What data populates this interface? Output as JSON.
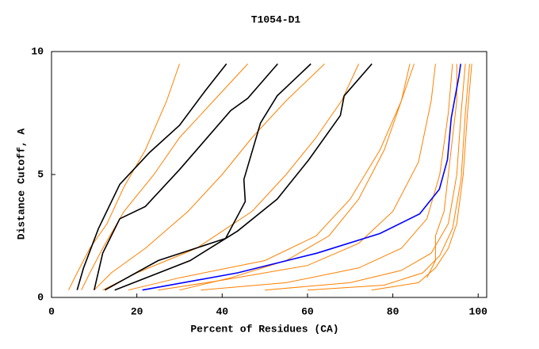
{
  "chart_data": {
    "type": "line",
    "title": "T1054-D1",
    "xlabel": "Percent of Residues (CA)",
    "ylabel": "Distance Cutoff, A",
    "xlim": [
      0,
      102
    ],
    "ylim": [
      0,
      10
    ],
    "xticks": [
      0,
      20,
      40,
      60,
      80,
      100
    ],
    "yticks": [
      0,
      5,
      10
    ],
    "series": [
      {
        "color": "#ff8000",
        "x": [
          4,
          6,
          9,
          13,
          17,
          22,
          27,
          30
        ],
        "values": [
          0.3,
          1,
          2,
          3,
          4.5,
          6,
          8,
          9.5
        ]
      },
      {
        "color": "#ff8000",
        "x": [
          7,
          9,
          12,
          17,
          24,
          30,
          38,
          46
        ],
        "values": [
          0.3,
          1,
          2,
          3.5,
          5,
          6.5,
          8,
          9.5
        ]
      },
      {
        "color": "#ff8000",
        "x": [
          10,
          14,
          22,
          32,
          40,
          47,
          55,
          64
        ],
        "values": [
          0.3,
          1,
          2,
          3.5,
          5,
          6.5,
          8,
          9.5
        ]
      },
      {
        "color": "#ff8000",
        "x": [
          12,
          20,
          34,
          47,
          55,
          62,
          68,
          72
        ],
        "values": [
          0.3,
          1,
          2,
          3.5,
          5,
          6.5,
          8,
          9.5
        ]
      },
      {
        "color": "#ff8000",
        "x": [
          18,
          30,
          50,
          62,
          70,
          77,
          82,
          84
        ],
        "values": [
          0.3,
          0.8,
          1.5,
          2.5,
          4,
          6,
          8,
          9.5
        ]
      },
      {
        "color": "#ff8000",
        "x": [
          25,
          40,
          60,
          72,
          80,
          86,
          89,
          90
        ],
        "values": [
          0.3,
          0.7,
          1.3,
          2.2,
          3.5,
          5.5,
          8,
          9.5
        ]
      },
      {
        "color": "#ff8000",
        "x": [
          35,
          55,
          72,
          82,
          88,
          91,
          93,
          94
        ],
        "values": [
          0.3,
          0.6,
          1.2,
          2,
          3.2,
          5,
          7.5,
          9.5
        ]
      },
      {
        "color": "#ff8000",
        "x": [
          50,
          70,
          82,
          89,
          93,
          95,
          96,
          97
        ],
        "values": [
          0.3,
          0.6,
          1.1,
          1.8,
          3,
          5,
          7.5,
          9.5
        ]
      },
      {
        "color": "#ff8000",
        "x": [
          60,
          78,
          87,
          91,
          94,
          96,
          97,
          98
        ],
        "values": [
          0.3,
          0.5,
          1,
          1.7,
          2.8,
          4.8,
          7.5,
          9.5
        ]
      },
      {
        "color": "#ff8000",
        "x": [
          75,
          86,
          90,
          93,
          95,
          96.5,
          97.5,
          98.5
        ],
        "values": [
          0.3,
          0.6,
          1.2,
          2,
          3,
          5,
          7.5,
          9.5
        ]
      },
      {
        "color": "#ff8000",
        "x": [
          88,
          90,
          90,
          92,
          93,
          94,
          95,
          95
        ],
        "values": [
          0.8,
          1.5,
          2.5,
          3.5,
          5,
          6.5,
          8,
          9.5
        ]
      },
      {
        "color": "#ff8000",
        "x": [
          30,
          42,
          55,
          65,
          72,
          78,
          82,
          85
        ],
        "values": [
          0.3,
          0.8,
          1.5,
          2.5,
          4,
          6,
          8,
          9.5
        ]
      },
      {
        "color": "#000000",
        "x": [
          6,
          7.5,
          11,
          16,
          23,
          30,
          36,
          41
        ],
        "values": [
          0.3,
          1.2,
          2.8,
          4.6,
          5.9,
          7,
          8.4,
          9.5
        ]
      },
      {
        "color": "#000000",
        "x": [
          10,
          12,
          16,
          22,
          30,
          42,
          46,
          53
        ],
        "values": [
          0.3,
          1.8,
          3.2,
          3.7,
          5.2,
          7.6,
          8.1,
          9.5
        ]
      },
      {
        "color": "#000000",
        "x": [
          12.5,
          25,
          40.8,
          45.4,
          45.1,
          49,
          52.9,
          60.8
        ],
        "values": [
          0.3,
          1.5,
          2.4,
          3.9,
          4.8,
          7.1,
          8.2,
          9.5
        ]
      },
      {
        "color": "#000000",
        "x": [
          14.8,
          32.5,
          43.6,
          52.9,
          60.3,
          67.7,
          68.6,
          75.1
        ],
        "values": [
          0.3,
          1.5,
          2.7,
          4,
          5.6,
          7.4,
          8.2,
          9.5
        ]
      },
      {
        "color": "#0000ff",
        "x": [
          21.3,
          43.6,
          62.2,
          77,
          86.3,
          90.9,
          92.8,
          93.7,
          95.5,
          95.9
        ],
        "values": [
          0.3,
          1,
          1.8,
          2.6,
          3.4,
          4.4,
          5.6,
          7.3,
          9.0,
          9.5
        ]
      }
    ]
  }
}
